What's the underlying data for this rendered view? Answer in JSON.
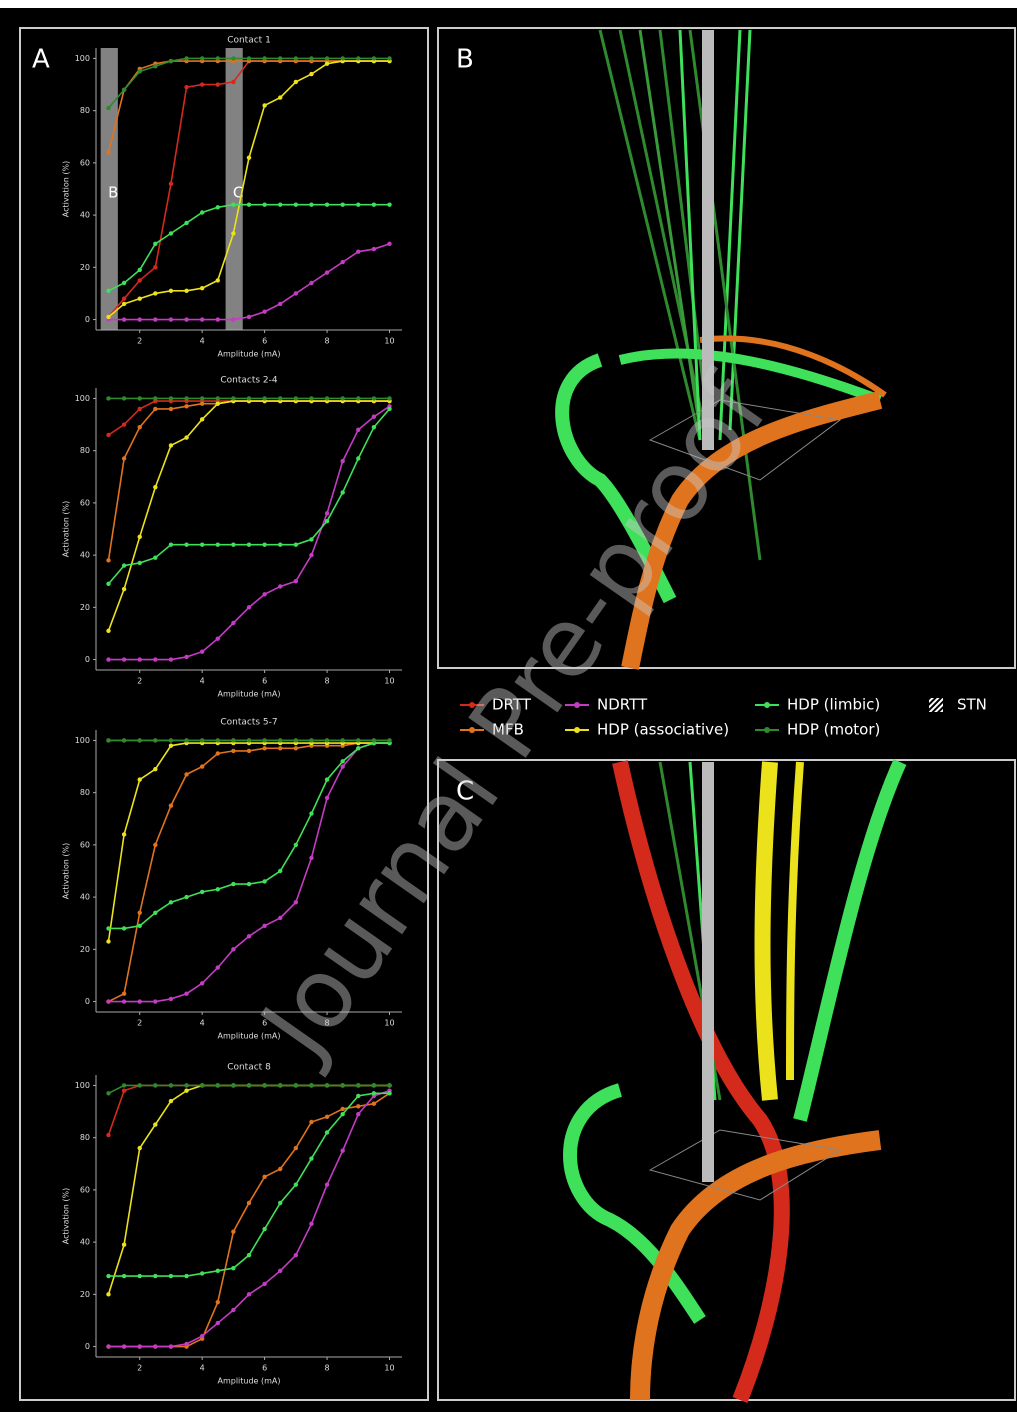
{
  "panels": {
    "a": "A",
    "b": "B",
    "c": "C"
  },
  "watermark": "Journal Pre-proof",
  "legend": {
    "items": [
      {
        "name": "DRTT",
        "color": "#d42a1c"
      },
      {
        "name": "MFB",
        "color": "#e0731e"
      },
      {
        "name": "NDRTT",
        "color": "#c43cc4"
      },
      {
        "name": "HDP (associative)",
        "color": "#ece21c"
      },
      {
        "name": "HDP (limbic)",
        "color": "#3fe05a"
      },
      {
        "name": "HDP (motor)",
        "color": "#2f8a2f"
      },
      {
        "name": "STN"
      }
    ]
  },
  "chart_data": [
    {
      "type": "line",
      "title": "Contact 1",
      "x_label": "Amplitude (mA)",
      "y_label": "Activation (%)",
      "x": [
        1,
        1.5,
        2,
        2.5,
        3,
        3.5,
        4,
        4.5,
        5,
        5.5,
        6,
        6.5,
        7,
        7.5,
        8,
        8.5,
        9,
        9.5,
        10
      ],
      "series": [
        {
          "values": [
            1,
            8,
            15,
            20,
            52,
            89,
            90,
            90,
            91,
            99,
            99,
            99,
            99,
            99,
            99,
            99,
            99,
            99,
            99
          ]
        },
        {
          "values": [
            64,
            88,
            96,
            98,
            99,
            99,
            99,
            99,
            99,
            99,
            99,
            99,
            99,
            99,
            99,
            99,
            99,
            99,
            99
          ]
        },
        {
          "values": [
            0,
            0,
            0,
            0,
            0,
            0,
            0,
            0,
            0,
            1,
            3,
            6,
            10,
            14,
            18,
            22,
            26,
            27,
            29
          ]
        },
        {
          "values": [
            1,
            6,
            8,
            10,
            11,
            11,
            12,
            15,
            33,
            62,
            82,
            85,
            91,
            94,
            98,
            99,
            99,
            99,
            99
          ]
        },
        {
          "values": [
            11,
            14,
            19,
            29,
            33,
            37,
            41,
            43,
            44,
            44,
            44,
            44,
            44,
            44,
            44,
            44,
            44,
            44,
            44
          ]
        },
        {
          "values": [
            81,
            88,
            95,
            97,
            99,
            100,
            100,
            100,
            100,
            100,
            100,
            100,
            100,
            100,
            100,
            100,
            100,
            100,
            100
          ]
        }
      ],
      "shaded_regions": [
        {
          "label": "B",
          "xlim": [
            0.75,
            1.3
          ]
        },
        {
          "label": "C",
          "xlim": [
            4.75,
            5.3
          ]
        }
      ],
      "xlim": [
        0.6,
        10.4
      ],
      "ylim": [
        -4,
        104
      ],
      "xticks": [
        2,
        4,
        6,
        8,
        10
      ],
      "yticks": [
        0,
        20,
        40,
        60,
        80,
        100
      ]
    },
    {
      "type": "line",
      "title": "Contacts 2-4",
      "x_label": "Amplitude (mA)",
      "y_label": "Activation (%)",
      "x": [
        1,
        1.5,
        2,
        2.5,
        3,
        3.5,
        4,
        4.5,
        5,
        5.5,
        6,
        6.5,
        7,
        7.5,
        8,
        8.5,
        9,
        9.5,
        10
      ],
      "series": [
        {
          "values": [
            86,
            90,
            96,
            99,
            99,
            99,
            99,
            99,
            99,
            99,
            99,
            99,
            99,
            99,
            99,
            99,
            99,
            99,
            99
          ]
        },
        {
          "values": [
            38,
            77,
            89,
            96,
            96,
            97,
            98,
            98,
            99,
            99,
            99,
            99,
            99,
            99,
            99,
            99,
            99,
            99,
            99
          ]
        },
        {
          "values": [
            0,
            0,
            0,
            0,
            0,
            1,
            3,
            8,
            14,
            20,
            25,
            28,
            30,
            40,
            56,
            76,
            88,
            93,
            97
          ]
        },
        {
          "values": [
            11,
            27,
            47,
            66,
            82,
            85,
            92,
            98,
            99,
            99,
            99,
            99,
            99,
            99,
            99,
            99,
            99,
            99,
            99
          ]
        },
        {
          "values": [
            29,
            36,
            37,
            39,
            44,
            44,
            44,
            44,
            44,
            44,
            44,
            44,
            44,
            46,
            53,
            64,
            77,
            89,
            96
          ]
        },
        {
          "values": [
            100,
            100,
            100,
            100,
            100,
            100,
            100,
            100,
            100,
            100,
            100,
            100,
            100,
            100,
            100,
            100,
            100,
            100,
            100
          ]
        }
      ],
      "xlim": [
        0.6,
        10.4
      ],
      "ylim": [
        -4,
        104
      ],
      "xticks": [
        2,
        4,
        6,
        8,
        10
      ],
      "yticks": [
        0,
        20,
        40,
        60,
        80,
        100
      ]
    },
    {
      "type": "line",
      "title": "Contacts 5-7",
      "x_label": "Amplitude (mA)",
      "y_label": "Activation (%)",
      "x": [
        1,
        1.5,
        2,
        2.5,
        3,
        3.5,
        4,
        4.5,
        5,
        5.5,
        6,
        6.5,
        7,
        7.5,
        8,
        8.5,
        9,
        9.5,
        10
      ],
      "series": [
        {
          "values": [
            100,
            100,
            100,
            100,
            100,
            100,
            100,
            100,
            100,
            100,
            100,
            100,
            100,
            100,
            100,
            100,
            100,
            100,
            100
          ]
        },
        {
          "values": [
            0,
            3,
            34,
            60,
            75,
            87,
            90,
            95,
            96,
            96,
            97,
            97,
            97,
            98,
            98,
            98,
            99,
            99,
            99
          ]
        },
        {
          "values": [
            0,
            0,
            0,
            0,
            1,
            3,
            7,
            13,
            20,
            25,
            29,
            32,
            38,
            55,
            78,
            90,
            97,
            99,
            99
          ]
        },
        {
          "values": [
            23,
            64,
            85,
            89,
            98,
            99,
            99,
            99,
            99,
            99,
            99,
            99,
            99,
            99,
            99,
            99,
            99,
            99,
            99
          ]
        },
        {
          "values": [
            28,
            28,
            29,
            34,
            38,
            40,
            42,
            43,
            45,
            45,
            46,
            50,
            60,
            72,
            85,
            92,
            97,
            99,
            99
          ]
        },
        {
          "values": [
            100,
            100,
            100,
            100,
            100,
            100,
            100,
            100,
            100,
            100,
            100,
            100,
            100,
            100,
            100,
            100,
            100,
            100,
            100
          ]
        }
      ],
      "xlim": [
        0.6,
        10.4
      ],
      "ylim": [
        -4,
        104
      ],
      "xticks": [
        2,
        4,
        6,
        8,
        10
      ],
      "yticks": [
        0,
        20,
        40,
        60,
        80,
        100
      ]
    },
    {
      "type": "line",
      "title": "Contact 8",
      "x_label": "Amplitude (mA)",
      "y_label": "Activation (%)",
      "x": [
        1,
        1.5,
        2,
        2.5,
        3,
        3.5,
        4,
        4.5,
        5,
        5.5,
        6,
        6.5,
        7,
        7.5,
        8,
        8.5,
        9,
        9.5,
        10
      ],
      "series": [
        {
          "values": [
            81,
            98,
            100,
            100,
            100,
            100,
            100,
            100,
            100,
            100,
            100,
            100,
            100,
            100,
            100,
            100,
            100,
            100,
            100
          ]
        },
        {
          "values": [
            0,
            0,
            0,
            0,
            0,
            0,
            3,
            17,
            44,
            55,
            65,
            68,
            76,
            86,
            88,
            91,
            92,
            93,
            97
          ]
        },
        {
          "values": [
            0,
            0,
            0,
            0,
            0,
            1,
            4,
            9,
            14,
            20,
            24,
            29,
            35,
            47,
            62,
            75,
            89,
            96,
            98
          ]
        },
        {
          "values": [
            20,
            39,
            76,
            85,
            94,
            98,
            100,
            100,
            100,
            100,
            100,
            100,
            100,
            100,
            100,
            100,
            100,
            100,
            100
          ]
        },
        {
          "values": [
            27,
            27,
            27,
            27,
            27,
            27,
            28,
            29,
            30,
            35,
            45,
            55,
            62,
            72,
            82,
            89,
            96,
            97,
            97
          ]
        },
        {
          "values": [
            97,
            100,
            100,
            100,
            100,
            100,
            100,
            100,
            100,
            100,
            100,
            100,
            100,
            100,
            100,
            100,
            100,
            100,
            100
          ]
        }
      ],
      "xlim": [
        0.6,
        10.4
      ],
      "ylim": [
        -4,
        104
      ],
      "xticks": [
        2,
        4,
        6,
        8,
        10
      ],
      "yticks": [
        0,
        20,
        40,
        60,
        80,
        100
      ]
    }
  ]
}
